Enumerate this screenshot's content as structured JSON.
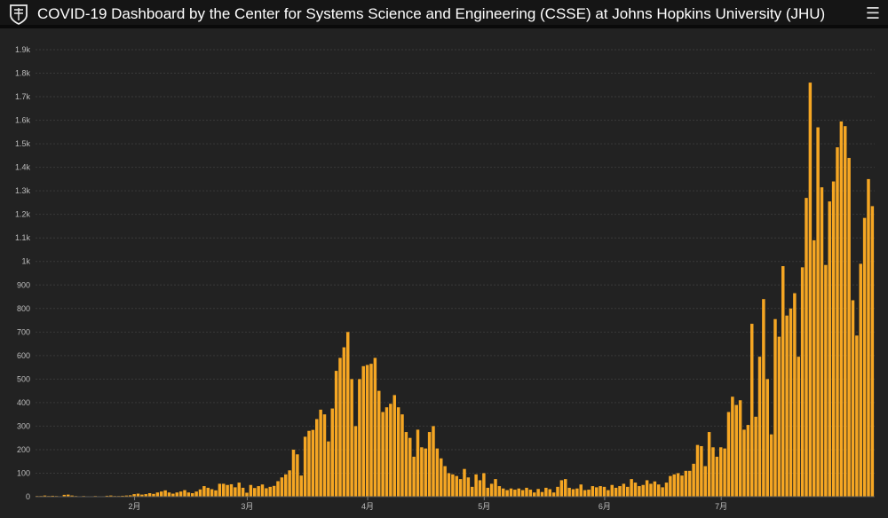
{
  "header": {
    "title": "COVID-19 Dashboard by the Center for Systems Science and Engineering (CSSE) at Johns Hopkins University (JHU)",
    "logo_icon": "jhu-shield-icon",
    "menu_icon": "hamburger-menu-icon"
  },
  "colors": {
    "background": "#222222",
    "header": "#151515",
    "bar": "#f5a623",
    "grid": "#3a3a3a",
    "tick_label": "#bdbdbd"
  },
  "chart_data": {
    "type": "bar",
    "title": "",
    "xlabel": "",
    "ylabel": "",
    "ylim": [
      0,
      1900
    ],
    "grid": true,
    "y_ticks": [
      0,
      100,
      200,
      300,
      400,
      500,
      600,
      700,
      800,
      900,
      1000,
      1100,
      1200,
      1300,
      1400,
      1500,
      1600,
      1700,
      1800,
      1900
    ],
    "y_tick_labels": [
      "0",
      "100",
      "200",
      "300",
      "400",
      "500",
      "600",
      "700",
      "800",
      "900",
      "1k",
      "1.1k",
      "1.2k",
      "1.3k",
      "1.4k",
      "1.5k",
      "1.6k",
      "1.7k",
      "1.8k",
      "1.9k"
    ],
    "x_tick_labels": [
      {
        "label": "2月",
        "index": 31
      },
      {
        "label": "3月",
        "index": 60
      },
      {
        "label": "4月",
        "index": 91
      },
      {
        "label": "5月",
        "index": 121
      },
      {
        "label": "6月",
        "index": 152
      },
      {
        "label": "7月",
        "index": 182
      }
    ],
    "x_start_index": 6,
    "values": [
      3,
      3,
      5,
      3,
      4,
      3,
      2,
      8,
      9,
      5,
      3,
      2,
      3,
      2,
      2,
      3,
      2,
      2,
      4,
      5,
      3,
      3,
      4,
      5,
      6,
      11,
      13,
      9,
      11,
      15,
      12,
      18,
      22,
      27,
      18,
      13,
      18,
      22,
      28,
      18,
      15,
      22,
      31,
      45,
      38,
      32,
      27,
      55,
      55,
      50,
      53,
      40,
      60,
      38,
      17,
      50,
      37,
      45,
      52,
      36,
      42,
      46,
      66,
      82,
      95,
      112,
      200,
      180,
      90,
      255,
      280,
      284,
      330,
      370,
      350,
      235,
      375,
      535,
      590,
      635,
      700,
      500,
      300,
      500,
      555,
      560,
      565,
      590,
      450,
      360,
      380,
      395,
      432,
      380,
      350,
      275,
      250,
      170,
      285,
      210,
      205,
      275,
      300,
      205,
      163,
      130,
      100,
      95,
      88,
      75,
      118,
      82,
      42,
      95,
      70,
      100,
      38,
      55,
      75,
      45,
      35,
      28,
      35,
      30,
      35,
      28,
      38,
      30,
      18,
      33,
      20,
      38,
      32,
      18,
      42,
      70,
      75,
      38,
      32,
      35,
      52,
      28,
      30,
      45,
      40,
      45,
      42,
      28,
      50,
      38,
      45,
      55,
      42,
      75,
      60,
      45,
      50,
      70,
      55,
      65,
      52,
      40,
      60,
      88,
      95,
      100,
      90,
      110,
      110,
      140,
      220,
      215,
      130,
      275,
      210,
      170,
      210,
      205,
      360,
      425,
      390,
      410,
      285,
      305,
      735,
      340,
      595,
      840,
      500,
      265,
      755,
      680,
      980,
      770,
      800,
      865,
      595,
      975,
      1270,
      1760,
      1090,
      1570,
      1315,
      985,
      1255,
      1340,
      1485,
      1595,
      1575,
      1440,
      835,
      685,
      990,
      1185,
      1350,
      1235
    ]
  }
}
